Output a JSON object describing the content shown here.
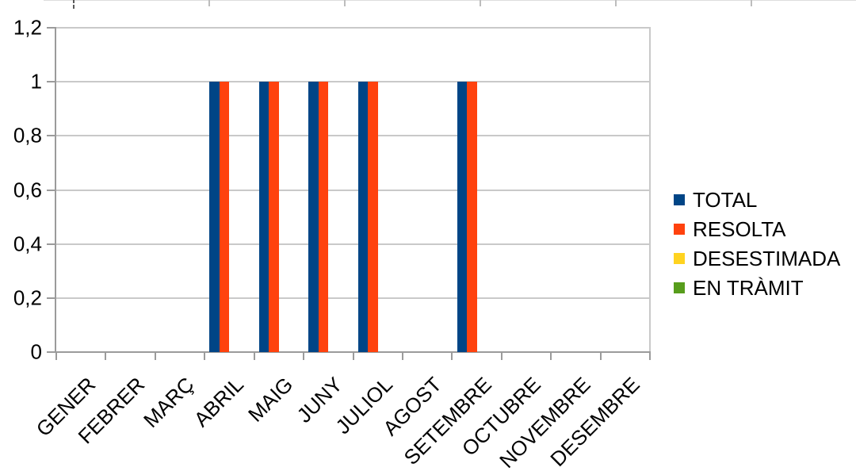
{
  "chart_data": {
    "type": "bar",
    "title": "",
    "xlabel": "",
    "ylabel": "",
    "categories": [
      "GENER",
      "FEBRER",
      "MARÇ",
      "ABRIL",
      "MAIG",
      "JUNY",
      "JULIOL",
      "AGOST",
      "SETEMBRE",
      "OCTUBRE",
      "NOVEMBRE",
      "DESEMBRE"
    ],
    "series": [
      {
        "name": "TOTAL",
        "color": "#004586",
        "values": [
          0,
          0,
          0,
          1,
          1,
          1,
          1,
          0,
          1,
          0,
          0,
          0
        ]
      },
      {
        "name": "RESOLTA",
        "color": "#FF420E",
        "values": [
          0,
          0,
          0,
          1,
          1,
          1,
          1,
          0,
          1,
          0,
          0,
          0
        ]
      },
      {
        "name": "DESESTIMADA",
        "color": "#FFD320",
        "values": [
          0,
          0,
          0,
          0,
          0,
          0,
          0,
          0,
          0,
          0,
          0,
          0
        ]
      },
      {
        "name": "EN TRÀMIT",
        "color": "#579D1C",
        "values": [
          0,
          0,
          0,
          0,
          0,
          0,
          0,
          0,
          0,
          0,
          0,
          0
        ]
      }
    ],
    "ylim": [
      0,
      1.2
    ],
    "yticks": [
      {
        "value": 0,
        "label": "0"
      },
      {
        "value": 0.2,
        "label": "0,2"
      },
      {
        "value": 0.4,
        "label": "0,4"
      },
      {
        "value": 0.6,
        "label": "0,6"
      },
      {
        "value": 0.8,
        "label": "0,8"
      },
      {
        "value": 1,
        "label": "1"
      },
      {
        "value": 1.2,
        "label": "1,2"
      }
    ],
    "grid": true,
    "legend_position": "right"
  },
  "colors": {
    "background": "#ffffff",
    "gridline": "#c9c9c9",
    "axis": "#9b9b9b",
    "text": "#000000"
  }
}
